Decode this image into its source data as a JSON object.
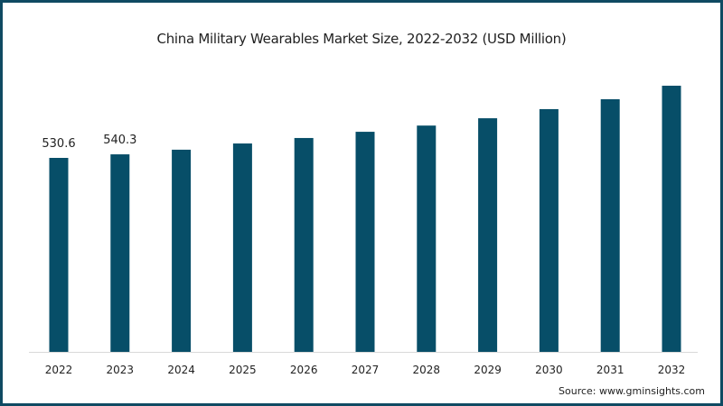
{
  "chart_data": {
    "type": "bar",
    "title": "China Military Wearables Market Size, 2022-2032 (USD Million)",
    "xlabel": "",
    "ylabel": "",
    "categories": [
      "2022",
      "2023",
      "2024",
      "2025",
      "2026",
      "2027",
      "2028",
      "2029",
      "2030",
      "2031",
      "2032"
    ],
    "values": [
      530.6,
      540.3,
      553,
      570,
      585,
      602,
      619,
      639,
      664,
      691,
      728
    ],
    "data_labels": [
      "530.6",
      "540.3",
      null,
      null,
      null,
      null,
      null,
      null,
      null,
      null,
      null
    ],
    "ylim": [
      0,
      800
    ],
    "grid": false,
    "bar_color": "#074e68",
    "source": "Source: www.gminsights.com"
  }
}
